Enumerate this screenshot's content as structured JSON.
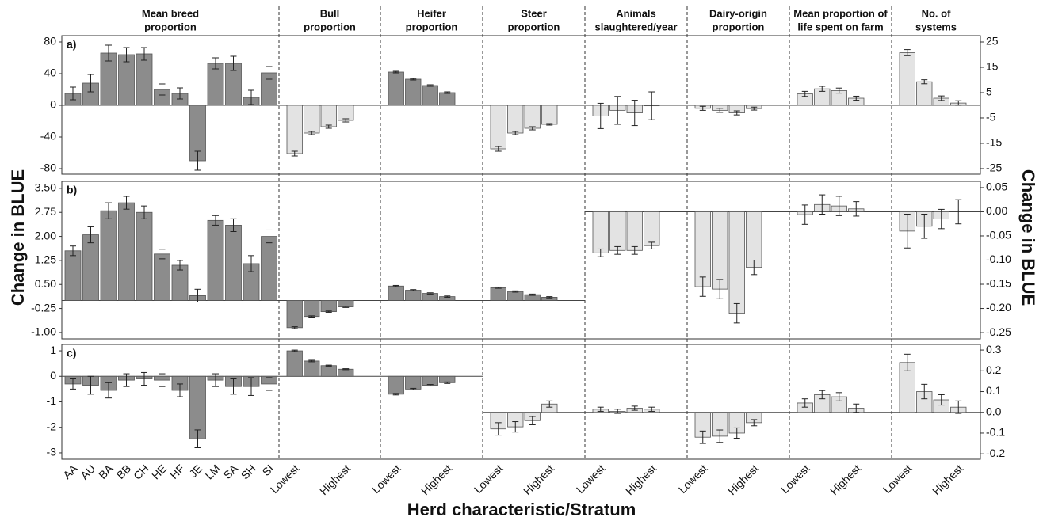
{
  "y_label": "Change in BLUE",
  "x_label": "Herd characteristic/Stratum",
  "group_titles": [
    [
      "Mean breed",
      "proportion"
    ],
    [
      "Bull",
      "proportion"
    ],
    [
      "Heifer",
      "proportion"
    ],
    [
      "Steer",
      "proportion"
    ],
    [
      "Animals",
      "slaughtered/year"
    ],
    [
      "Dairy-origin",
      "proportion"
    ],
    [
      "Mean proportion of",
      "life spent on farm"
    ],
    [
      "No. of",
      "systems"
    ]
  ],
  "group_categories": [
    [
      "AA",
      "AU",
      "BA",
      "BB",
      "CH",
      "HE",
      "HF",
      "JE",
      "LM",
      "SA",
      "SH",
      "SI"
    ],
    [
      "Lowest",
      null,
      null,
      "Highest"
    ],
    [
      "Lowest",
      null,
      null,
      "Highest"
    ],
    [
      "Lowest",
      null,
      null,
      "Highest"
    ],
    [
      "Lowest",
      null,
      null,
      "Highest"
    ],
    [
      "Lowest",
      null,
      null,
      "Highest"
    ],
    [
      "Lowest",
      null,
      null,
      "Highest"
    ],
    [
      "Lowest",
      null,
      null,
      "Highest"
    ]
  ],
  "chart_data": [
    {
      "type": "bar",
      "label": "a)",
      "ylim": [
        -87,
        88
      ],
      "yticks": [
        -80,
        -40,
        0,
        40,
        80
      ],
      "y2lim": [
        -27.2,
        27.5
      ],
      "y2ticks": [
        -25,
        -15,
        -5,
        5,
        15,
        25
      ],
      "groups": [
        {
          "axis": "y",
          "color": "#8c8c8c",
          "values": [
            15,
            28,
            66,
            64,
            65,
            20,
            15,
            -70,
            53,
            53,
            10,
            41
          ],
          "errors": [
            8,
            11,
            10,
            9,
            8,
            7,
            7,
            12,
            7,
            9,
            9,
            8
          ]
        },
        {
          "axis": "y",
          "color": "#e3e3e3",
          "values": [
            -61,
            -35,
            -27,
            -19
          ],
          "errors": [
            3,
            2,
            2,
            2
          ]
        },
        {
          "axis": "y",
          "color": "#8c8c8c",
          "values": [
            42,
            33,
            25,
            16
          ],
          "errors": [
            1,
            1,
            1,
            1
          ]
        },
        {
          "axis": "y",
          "color": "#e3e3e3",
          "values": [
            -55,
            -35,
            -29,
            -24
          ],
          "errors": [
            3,
            2,
            2,
            1
          ]
        },
        {
          "axis": "y2",
          "color": "#e3e3e3",
          "values": [
            -4.2,
            -2,
            -3,
            -0.2
          ],
          "errors": [
            5,
            5.5,
            5,
            5.5
          ]
        },
        {
          "axis": "y2",
          "color": "#e3e3e3",
          "values": [
            -1.2,
            -2,
            -3,
            -1.3
          ],
          "errors": [
            0.8,
            0.8,
            0.8,
            0.6
          ]
        },
        {
          "axis": "y2",
          "color": "#e3e3e3",
          "values": [
            4.5,
            6.5,
            5.8,
            2.8
          ],
          "errors": [
            1,
            1,
            1,
            0.8
          ]
        },
        {
          "axis": "y2",
          "color": "#e3e3e3",
          "values": [
            20.8,
            9.3,
            2.8,
            0.9
          ],
          "errors": [
            1.2,
            0.8,
            0.9,
            0.9
          ]
        }
      ]
    },
    {
      "type": "bar",
      "label": "b)",
      "ylim": [
        -1.2,
        3.72
      ],
      "yticks": [
        {
          "value": -1,
          "label": "-1.00"
        },
        {
          "value": -0.25,
          "label": "-0.25"
        },
        {
          "value": 0.5,
          "label": "0.50"
        },
        {
          "value": 1.25,
          "label": "1.25"
        },
        {
          "value": 2,
          "label": "2.00"
        },
        {
          "value": 2.75,
          "label": "2.75"
        },
        {
          "value": 3.5,
          "label": "3.50"
        }
      ],
      "y2lim": [
        -0.263,
        0.063
      ],
      "y2ticks": [
        {
          "value": -0.25,
          "label": "-0.25"
        },
        {
          "value": -0.2,
          "label": "-0.20"
        },
        {
          "value": -0.15,
          "label": "-0.15"
        },
        {
          "value": -0.1,
          "label": "-0.10"
        },
        {
          "value": -0.05,
          "label": "-0.05"
        },
        {
          "value": 0,
          "label": "0.00"
        },
        {
          "value": 0.05,
          "label": "0.05"
        }
      ],
      "groups": [
        {
          "axis": "y",
          "color": "#8c8c8c",
          "values": [
            1.55,
            2.05,
            2.8,
            3.05,
            2.75,
            1.45,
            1.1,
            0.15,
            2.5,
            2.35,
            1.15,
            2
          ],
          "errors": [
            0.15,
            0.25,
            0.25,
            0.2,
            0.2,
            0.15,
            0.15,
            0.2,
            0.15,
            0.2,
            0.25,
            0.2
          ]
        },
        {
          "axis": "y",
          "color": "#8c8c8c",
          "values": [
            -0.85,
            -0.5,
            -0.35,
            -0.2
          ],
          "errors": [
            0.03,
            0.02,
            0.02,
            0.02
          ]
        },
        {
          "axis": "y",
          "color": "#8c8c8c",
          "values": [
            0.45,
            0.32,
            0.22,
            0.12
          ],
          "errors": [
            0.02,
            0.02,
            0.02,
            0.02
          ]
        },
        {
          "axis": "y",
          "color": "#8c8c8c",
          "values": [
            0.4,
            0.28,
            0.18,
            0.1
          ],
          "errors": [
            0.02,
            0.02,
            0.02,
            0.02
          ]
        },
        {
          "axis": "y2",
          "color": "#e3e3e3",
          "values": [
            -0.085,
            -0.08,
            -0.08,
            -0.07
          ],
          "errors": [
            0.008,
            0.008,
            0.008,
            0.007
          ]
        },
        {
          "axis": "y2",
          "color": "#e3e3e3",
          "values": [
            -0.155,
            -0.16,
            -0.21,
            -0.115
          ],
          "errors": [
            0.02,
            0.02,
            0.02,
            0.015
          ]
        },
        {
          "axis": "y2",
          "color": "#e3e3e3",
          "values": [
            -0.006,
            0.015,
            0.012,
            0.006
          ],
          "errors": [
            0.02,
            0.02,
            0.02,
            0.015
          ]
        },
        {
          "axis": "y2",
          "color": "#e3e3e3",
          "values": [
            -0.04,
            -0.03,
            -0.015,
            0
          ],
          "errors": [
            0.035,
            0.025,
            0.02,
            0.025
          ]
        }
      ]
    },
    {
      "type": "bar",
      "label": "c)",
      "ylim": [
        -3.25,
        1.25
      ],
      "yticks": [
        -3,
        -2,
        -1,
        0,
        1
      ],
      "y2lim": [
        -0.226,
        0.327
      ],
      "y2ticks": [
        -0.2,
        -0.1,
        {
          "value": 0,
          "label": "0.0"
        },
        0.1,
        0.2,
        0.3
      ],
      "groups": [
        {
          "axis": "y",
          "color": "#8c8c8c",
          "values": [
            -0.3,
            -0.35,
            -0.55,
            -0.15,
            -0.1,
            -0.15,
            -0.55,
            -2.45,
            -0.15,
            -0.4,
            -0.4,
            -0.3
          ],
          "errors": [
            0.2,
            0.35,
            0.3,
            0.25,
            0.25,
            0.25,
            0.25,
            0.35,
            0.25,
            0.3,
            0.35,
            0.25
          ]
        },
        {
          "axis": "y",
          "color": "#8c8c8c",
          "values": [
            1,
            0.6,
            0.42,
            0.28
          ],
          "errors": [
            0.03,
            0.03,
            0.02,
            0.02
          ]
        },
        {
          "axis": "y",
          "color": "#8c8c8c",
          "values": [
            -0.7,
            -0.5,
            -0.35,
            -0.25
          ],
          "errors": [
            0.03,
            0.03,
            0.03,
            0.03
          ]
        },
        {
          "axis": "y2",
          "color": "#e3e3e3",
          "values": [
            -0.08,
            -0.07,
            -0.04,
            0.04
          ],
          "errors": [
            0.03,
            0.025,
            0.02,
            0.015
          ]
        },
        {
          "axis": "y2",
          "color": "#e3e3e3",
          "values": [
            0.015,
            0.005,
            0.02,
            0.015
          ],
          "errors": [
            0.01,
            0.01,
            0.01,
            0.01
          ]
        },
        {
          "axis": "y2",
          "color": "#e3e3e3",
          "values": [
            -0.12,
            -0.115,
            -0.1,
            -0.05
          ],
          "errors": [
            0.03,
            0.03,
            0.025,
            0.015
          ]
        },
        {
          "axis": "y2",
          "color": "#e3e3e3",
          "values": [
            0.045,
            0.085,
            0.075,
            0.02
          ],
          "errors": [
            0.02,
            0.02,
            0.02,
            0.02
          ]
        },
        {
          "axis": "y2",
          "color": "#e3e3e3",
          "values": [
            0.24,
            0.1,
            0.06,
            0.025
          ],
          "errors": [
            0.04,
            0.035,
            0.025,
            0.03
          ]
        }
      ]
    }
  ]
}
